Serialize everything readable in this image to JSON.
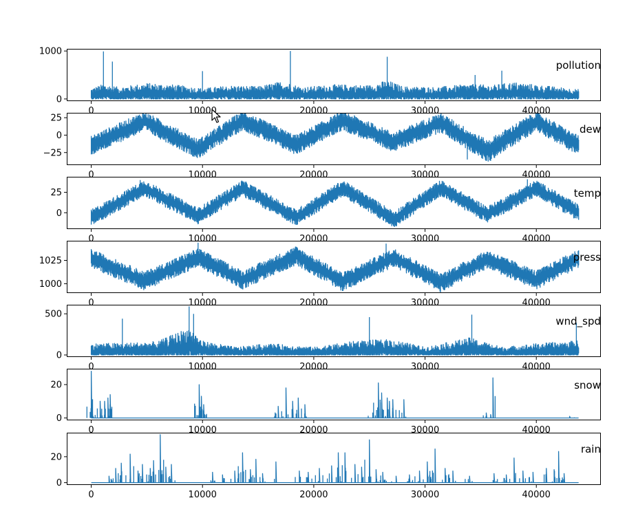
{
  "figure": {
    "background": "#ffffff",
    "line_color": "#1f77b4"
  },
  "x_ticks": [
    "0",
    "10000",
    "20000",
    "30000",
    "40000"
  ],
  "chart_data": [
    {
      "type": "line",
      "title": "pollution",
      "xlim": [
        -2200,
        45800
      ],
      "ylim": [
        -45,
        1045
      ],
      "yticks": [
        {
          "v": 0,
          "label": "0"
        },
        {
          "v": 1000,
          "label": "1000"
        }
      ],
      "x": [
        0,
        1100,
        2500,
        5000,
        7500,
        10000,
        12500,
        15000,
        17000,
        17900,
        19000,
        22000,
        25000,
        26600,
        28000,
        31000,
        34000,
        36000,
        38000,
        41000,
        43800
      ],
      "baseline": [
        40,
        60,
        45,
        70,
        55,
        40,
        60,
        50,
        80,
        60,
        45,
        60,
        55,
        70,
        50,
        45,
        60,
        55,
        70,
        50,
        40
      ],
      "amplitude": [
        180,
        250,
        200,
        260,
        240,
        180,
        220,
        210,
        280,
        260,
        200,
        240,
        230,
        320,
        210,
        200,
        250,
        230,
        280,
        220,
        160
      ],
      "spikes": [
        [
          1100,
          990
        ],
        [
          1900,
          780
        ],
        [
          10000,
          580
        ],
        [
          17900,
          1000
        ],
        [
          26600,
          880
        ],
        [
          36900,
          590
        ],
        [
          34500,
          500
        ]
      ]
    },
    {
      "type": "line",
      "title": "dew",
      "xlim": [
        -2200,
        45800
      ],
      "ylim": [
        -43,
        32
      ],
      "yticks": [
        {
          "v": 25,
          "label": "25"
        },
        {
          "v": 0,
          "label": "0"
        },
        {
          "v": -25,
          "label": "−25"
        }
      ],
      "x": [
        0,
        4800,
        9600,
        13600,
        18400,
        22600,
        27200,
        31400,
        35600,
        40000,
        43800
      ],
      "baseline": [
        -15,
        20,
        -20,
        21,
        -14,
        21,
        -10,
        18,
        -23,
        20,
        -15
      ],
      "amplitude": [
        14,
        14,
        14,
        14,
        14,
        14,
        14,
        14,
        16,
        14,
        14
      ],
      "spikes": [
        [
          35900,
          -37
        ],
        [
          33800,
          -35
        ]
      ]
    },
    {
      "type": "line",
      "title": "temp",
      "xlim": [
        -2200,
        45800
      ],
      "ylim": [
        -20,
        44
      ],
      "yticks": [
        {
          "v": 25,
          "label": "25"
        },
        {
          "v": 0,
          "label": "0"
        }
      ],
      "x": [
        0,
        4800,
        9600,
        13600,
        18400,
        22600,
        27200,
        31400,
        35600,
        40000,
        43800
      ],
      "baseline": [
        -6,
        30,
        -4,
        30,
        -6,
        30,
        -8,
        30,
        -2,
        30,
        0
      ],
      "amplitude": [
        10,
        10,
        10,
        10,
        10,
        10,
        10,
        10,
        10,
        10,
        10
      ],
      "spikes": [
        [
          39200,
          41
        ],
        [
          4400,
          40
        ]
      ]
    },
    {
      "type": "line",
      "title": "press",
      "xlim": [
        -2200,
        45800
      ],
      "ylim": [
        990,
        1046
      ],
      "yticks": [
        {
          "v": 1025,
          "label": "1025"
        },
        {
          "v": 1000,
          "label": "1000"
        }
      ],
      "x": [
        0,
        4800,
        9600,
        13600,
        18400,
        22600,
        27200,
        31400,
        35600,
        40000,
        43800
      ],
      "baseline": [
        1027,
        1003,
        1028,
        1004,
        1030,
        1002,
        1028,
        1001,
        1026,
        1004,
        1027
      ],
      "amplitude": [
        10,
        10,
        10,
        10,
        10,
        10,
        10,
        10,
        10,
        10,
        10
      ],
      "spikes": [
        [
          9600,
          1044
        ],
        [
          26500,
          1043
        ]
      ]
    },
    {
      "type": "line",
      "title": "wnd_spd",
      "xlim": [
        -2200,
        45800
      ],
      "ylim": [
        -25,
        610
      ],
      "yticks": [
        {
          "v": 500,
          "label": "500"
        },
        {
          "v": 0,
          "label": "0"
        }
      ],
      "x": [
        0,
        3000,
        6000,
        8800,
        10000,
        13000,
        16000,
        20000,
        24000,
        27000,
        30000,
        34000,
        37000,
        40000,
        43800
      ],
      "baseline": [
        20,
        25,
        25,
        60,
        30,
        15,
        20,
        15,
        25,
        30,
        15,
        30,
        15,
        20,
        25
      ],
      "amplitude": [
        120,
        120,
        140,
        280,
        140,
        80,
        120,
        80,
        150,
        160,
        80,
        180,
        80,
        120,
        150
      ],
      "spikes": [
        [
          8800,
          590
        ],
        [
          9200,
          500
        ],
        [
          2800,
          440
        ],
        [
          25000,
          460
        ],
        [
          34200,
          490
        ],
        [
          43600,
          390
        ]
      ]
    },
    {
      "type": "line",
      "title": "snow",
      "xlim": [
        -2200,
        45800
      ],
      "ylim": [
        -1.4,
        29.5
      ],
      "yticks": [
        {
          "v": 20,
          "label": "20"
        },
        {
          "v": 0,
          "label": "0"
        }
      ],
      "x": [
        0,
        43800
      ],
      "baseline": [
        0,
        0
      ],
      "amplitude": [
        0,
        0
      ],
      "spikes": [
        [
          0,
          28
        ],
        [
          100,
          4
        ],
        [
          800,
          10
        ],
        [
          1200,
          10
        ],
        [
          1500,
          12
        ],
        [
          1700,
          14
        ],
        [
          9700,
          20
        ],
        [
          9900,
          13
        ],
        [
          10100,
          8
        ],
        [
          16800,
          7
        ],
        [
          17500,
          18
        ],
        [
          18100,
          10
        ],
        [
          18600,
          12
        ],
        [
          19200,
          8
        ],
        [
          25300,
          3
        ],
        [
          25800,
          21
        ],
        [
          26100,
          15
        ],
        [
          26600,
          12
        ],
        [
          26800,
          10
        ],
        [
          27100,
          11
        ],
        [
          28100,
          11
        ],
        [
          35500,
          3
        ],
        [
          35900,
          2
        ],
        [
          36100,
          24
        ],
        [
          43000,
          1
        ]
      ]
    },
    {
      "type": "line",
      "title": "rain",
      "xlim": [
        -2200,
        45800
      ],
      "ylim": [
        -1.8,
        38.5
      ],
      "yticks": [
        {
          "v": 20,
          "label": "20"
        },
        {
          "v": 0,
          "label": "0"
        }
      ],
      "x": [
        0,
        43800
      ],
      "baseline": [
        0,
        0
      ],
      "amplitude": [
        0,
        0
      ],
      "spikes": [
        [
          1600,
          5
        ],
        [
          2200,
          11
        ],
        [
          2700,
          15
        ],
        [
          3500,
          22
        ],
        [
          4200,
          9
        ],
        [
          4600,
          14
        ],
        [
          5300,
          11
        ],
        [
          5600,
          17
        ],
        [
          6200,
          37
        ],
        [
          6700,
          12
        ],
        [
          7200,
          14
        ],
        [
          10900,
          8
        ],
        [
          11800,
          6
        ],
        [
          12900,
          9
        ],
        [
          13600,
          23
        ],
        [
          14300,
          10
        ],
        [
          14800,
          18
        ],
        [
          15400,
          7
        ],
        [
          16600,
          16
        ],
        [
          18700,
          9
        ],
        [
          19500,
          8
        ],
        [
          20500,
          11
        ],
        [
          21600,
          13
        ],
        [
          22200,
          23
        ],
        [
          22800,
          23
        ],
        [
          23700,
          14
        ],
        [
          24300,
          12
        ],
        [
          25000,
          33
        ],
        [
          25600,
          10
        ],
        [
          26200,
          8
        ],
        [
          27400,
          5
        ],
        [
          28600,
          6
        ],
        [
          29500,
          9
        ],
        [
          30200,
          16
        ],
        [
          30900,
          26
        ],
        [
          31800,
          11
        ],
        [
          32500,
          9
        ],
        [
          34000,
          5
        ],
        [
          36200,
          7
        ],
        [
          37300,
          6
        ],
        [
          38000,
          19
        ],
        [
          38800,
          9
        ],
        [
          39700,
          8
        ],
        [
          40900,
          11
        ],
        [
          41600,
          10
        ],
        [
          42000,
          24
        ],
        [
          42500,
          7
        ]
      ]
    }
  ]
}
